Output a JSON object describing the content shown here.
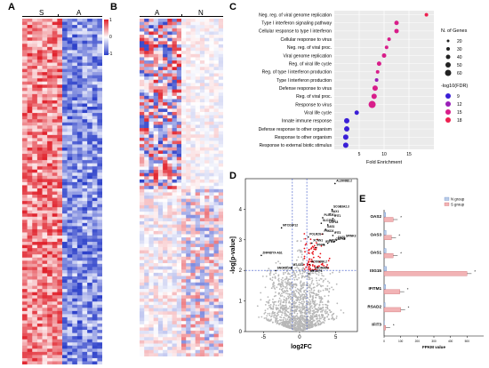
{
  "panels": {
    "a": "A",
    "b": "B",
    "c": "C",
    "d": "D",
    "e": "E"
  },
  "panel_a": {
    "group_labels": [
      "S",
      "A"
    ],
    "scale_ticks": [
      "1",
      "0",
      "-1"
    ],
    "colors": {
      "high": "#e0202a",
      "mid": "#ffffff",
      "low": "#2b3fc9"
    }
  },
  "panel_b": {
    "group_labels": [
      "A",
      "N"
    ]
  },
  "chart_c": {
    "type": "scatter",
    "xlabel": "Fold Enrichment",
    "x_ticks": [
      5,
      10,
      15
    ],
    "xlim": [
      0,
      20
    ],
    "terms": [
      "Neg. reg. of viral genome replication",
      "Type I interferon signaling pathway",
      "Cellular response to type I interferon",
      "Cellular response to virus",
      "Neg. reg. of viral proc.",
      "Viral genome replication",
      "Reg. of viral life cycle",
      "Reg. of type I interferon production",
      "Type I interferon production",
      "Defense response to virus",
      "Reg. of viral proc.",
      "Response to virus",
      "Viral life cycle",
      "Innate immune response",
      "Defense response to other organism",
      "Response to other organism",
      "Response to external biotic stimulus"
    ],
    "fold": [
      18.5,
      12.5,
      12.5,
      11.0,
      10.5,
      10.0,
      9.0,
      8.7,
      8.5,
      8.2,
      8.0,
      7.6,
      4.5,
      2.5,
      2.5,
      2.3,
      2.3
    ],
    "genes": [
      20,
      30,
      30,
      20,
      20,
      30,
      30,
      20,
      20,
      40,
      40,
      60,
      30,
      40,
      40,
      40,
      40
    ],
    "fdr": [
      17,
      16,
      16,
      15,
      15,
      15,
      14,
      14,
      13,
      15,
      14,
      16,
      10,
      9,
      9,
      9,
      9
    ],
    "size_legend_title": "N. of Genes",
    "size_legend": [
      "20",
      "30",
      "40",
      "50",
      "60"
    ],
    "color_legend_title": "-log10(FDR)",
    "color_legend": [
      "9",
      "12",
      "15",
      "18"
    ],
    "color_legend_colors": [
      "#3a1fd6",
      "#9a1fb8",
      "#d81e8a",
      "#ee2050"
    ]
  },
  "chart_d": {
    "type": "scatter",
    "xlabel": "log2FC",
    "ylabel": "-log[p-value]",
    "x_ticks": [
      "-5",
      "0",
      "5"
    ],
    "y_ticks": [
      "0",
      "1",
      "2",
      "3",
      "4"
    ],
    "xlim": [
      -7.5,
      8
    ],
    "ylim": [
      0,
      5
    ],
    "threshold_y": 2,
    "threshold_x": [
      -1,
      1
    ],
    "gene_labels": [
      "AL390882.2",
      "SCGB3A2.3",
      "RAX1",
      "IFIT1",
      "PLSCR1",
      "SLC35A2",
      "USP18",
      "OAS1",
      "MTCO3P12",
      "PRKD3",
      "IFIT3",
      "POLR2G",
      "CMPK2",
      "IFIT2",
      "OASL",
      "SPINK3",
      "XCNN1",
      "IFITM1",
      "IFI44L",
      "ZNFNDYX-AS1",
      "AC009996.2",
      "MT-CO2",
      "SNORD14A",
      "SNORA6B",
      "MT-ATP8"
    ],
    "colors": {
      "sig": "#e8141c",
      "ns": "#b7b7b7"
    }
  },
  "chart_e": {
    "type": "bar",
    "categories": [
      "OAS2",
      "OAS3",
      "OAS1",
      "ISG15",
      "IFITM1",
      "RSAD2",
      "IFIT3"
    ],
    "series": [
      {
        "name": "N group",
        "values": [
          10,
          12,
          12,
          15,
          10,
          6,
          2
        ]
      },
      {
        "name": "S group",
        "values": [
          55,
          45,
          55,
          500,
          95,
          100,
          10
        ]
      }
    ],
    "xlabel": "FPKM value",
    "x_ticks": [
      "0",
      "100",
      "200",
      "300",
      "400",
      "500"
    ],
    "xlim": [
      0,
      600
    ],
    "significance": [
      "*",
      "*",
      "*",
      "*",
      "*",
      "*",
      "*"
    ],
    "colors": {
      "n": "#b9cbe8",
      "s": "#f2b3b5"
    }
  }
}
